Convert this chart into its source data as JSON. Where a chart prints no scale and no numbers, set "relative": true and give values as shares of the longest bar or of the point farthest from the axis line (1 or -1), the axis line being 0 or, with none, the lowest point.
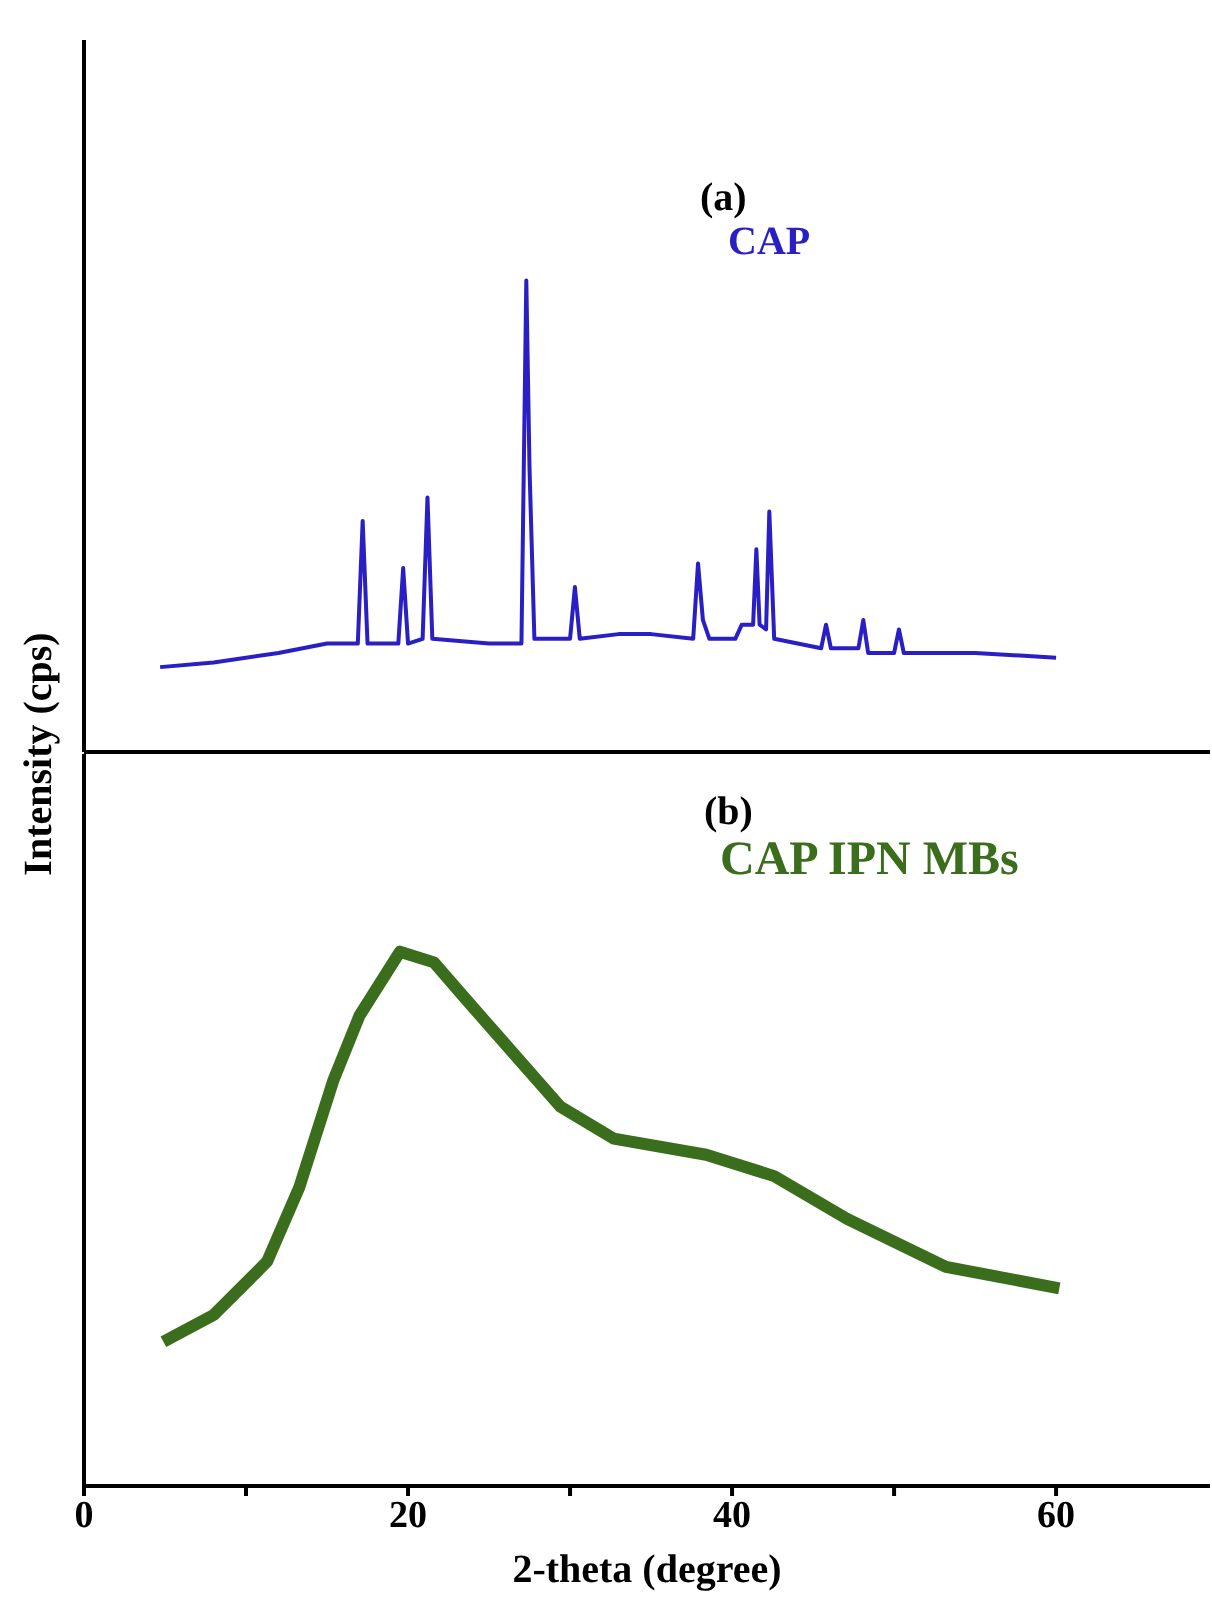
{
  "chart_data": [
    {
      "type": "line",
      "title": "(a)",
      "ylabel": "Intensity (cps)",
      "relative": true,
      "xlim": [
        0,
        69.5
      ],
      "tick_labels": false,
      "grid": false,
      "legend": false,
      "marker": "none",
      "series": [
        {
          "name": "CAP",
          "color": "#2a1fc4",
          "x": [
            4.7,
            8,
            12,
            15,
            16.9,
            17.2,
            17.5,
            19.4,
            19.7,
            20,
            20.9,
            21.2,
            21.5,
            25,
            27,
            27.3,
            27.5,
            27.8,
            30,
            30.3,
            30.6,
            33,
            35,
            37.6,
            37.9,
            38.2,
            38.6,
            40.2,
            40.6,
            41.3,
            41.5,
            41.7,
            42.1,
            42.3,
            42.6,
            45.5,
            45.8,
            46.1,
            47.8,
            48.1,
            48.4,
            50,
            50.3,
            50.6,
            55,
            60
          ],
          "values": [
            0.18,
            0.19,
            0.21,
            0.23,
            0.23,
            0.49,
            0.23,
            0.23,
            0.39,
            0.23,
            0.24,
            0.54,
            0.24,
            0.23,
            0.23,
            1,
            0.6,
            0.24,
            0.24,
            0.35,
            0.24,
            0.25,
            0.25,
            0.24,
            0.4,
            0.28,
            0.24,
            0.24,
            0.27,
            0.27,
            0.43,
            0.27,
            0.26,
            0.51,
            0.24,
            0.22,
            0.27,
            0.22,
            0.22,
            0.28,
            0.21,
            0.21,
            0.26,
            0.21,
            0.21,
            0.2
          ]
        }
      ]
    },
    {
      "type": "line",
      "title": "(b)",
      "xlabel": "2-theta (degree)",
      "relative": true,
      "xlim": [
        0,
        69.5
      ],
      "xticks": [
        0,
        {
          "value": 10,
          "label": null
        },
        20,
        {
          "value": 30,
          "label": null
        },
        40,
        {
          "value": 50,
          "label": null
        },
        60
      ],
      "tick_labels": "x",
      "grid": false,
      "legend": false,
      "marker": "none",
      "series": [
        {
          "name": "CAP IPN MBs",
          "color": "#3b6e1c",
          "x": [
            4.9,
            8,
            11.3,
            13.3,
            15.4,
            17,
            19.5,
            21.6,
            23.6,
            26.5,
            29.4,
            32.7,
            38.4,
            42.6,
            47.1,
            53.2,
            60.2
          ],
          "values": [
            0.27,
            0.32,
            0.42,
            0.56,
            0.76,
            0.88,
            1,
            0.98,
            0.91,
            0.81,
            0.71,
            0.65,
            0.62,
            0.58,
            0.5,
            0.41,
            0.37
          ]
        }
      ]
    }
  ]
}
